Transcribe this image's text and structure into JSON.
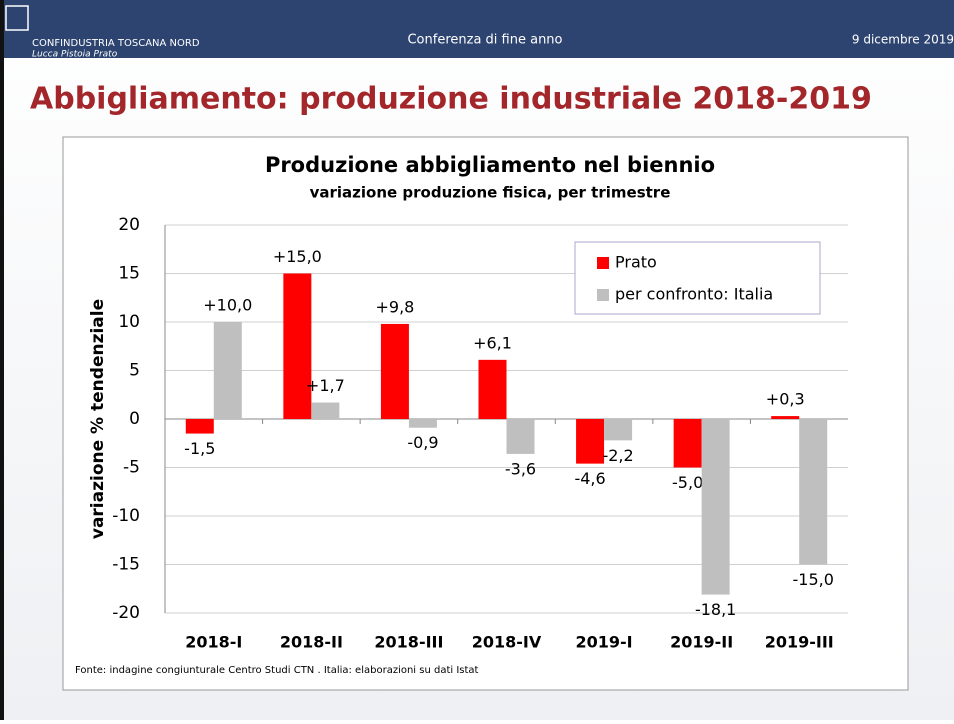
{
  "header": {
    "org": "CONFINDUSTRIA TOSCANA NORD",
    "sub": "Lucca Pistoia Prato",
    "event": "Conferenza di fine anno",
    "date": "9 dicembre 2019",
    "title": "Abbigliamento: produzione industriale 2018-2019"
  },
  "chart_data": {
    "type": "bar",
    "title": "Produzione abbigliamento nel biennio",
    "subtitle": "variazione produzione fisica, per trimestre",
    "ylabel": "variazione % tendenziale",
    "note": "Fonte: indagine  congiunturale  Centro Studi CTN . Italia: elaborazioni su dati Istat",
    "categories": [
      "2018-I",
      "2018-II",
      "2018-III",
      "2018-IV",
      "2019-I",
      "2019-II",
      "2019-III"
    ],
    "series": [
      {
        "name": "Prato",
        "color": "#ff0000",
        "values": [
          -1.5,
          15.0,
          9.8,
          6.1,
          -4.6,
          -5.0,
          0.3
        ],
        "value_labels": [
          "-1,5",
          "+15,0",
          "+9,8",
          "+6,1",
          "-4,6",
          "-5,0",
          "+0,3"
        ]
      },
      {
        "name": "per confronto: Italia",
        "color": "#bfbfbf",
        "values": [
          10.0,
          1.7,
          -0.9,
          -3.6,
          -2.2,
          -18.1,
          -15.0
        ],
        "value_labels": [
          "+10,0",
          "+1,7",
          "-0,9",
          "-3,6",
          "-2,2",
          "-18,1",
          "-15,0"
        ]
      }
    ],
    "ylim": [
      -20,
      20
    ],
    "yticks": [
      -20,
      -15,
      -10,
      -5,
      0,
      5,
      10,
      15,
      20
    ],
    "grid": true,
    "legend": "upper right"
  }
}
